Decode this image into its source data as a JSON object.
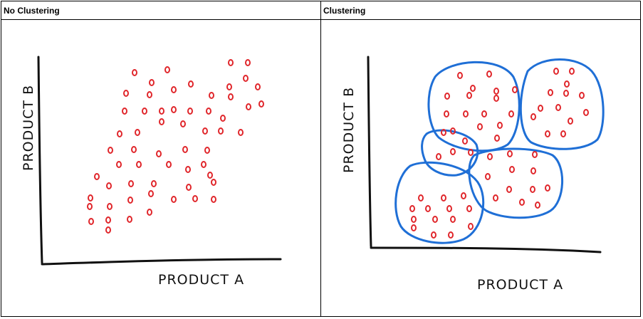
{
  "panels": [
    {
      "header": "No Clustering",
      "xlabel": "PRODUCT A",
      "ylabel": "PRODUCT B"
    },
    {
      "header": "Clustering",
      "xlabel": "PRODUCT A",
      "ylabel": "PRODUCT B"
    }
  ],
  "colors": {
    "points": "#e0262b",
    "clusters": "#1f6fd6",
    "axes": "#111111"
  }
}
